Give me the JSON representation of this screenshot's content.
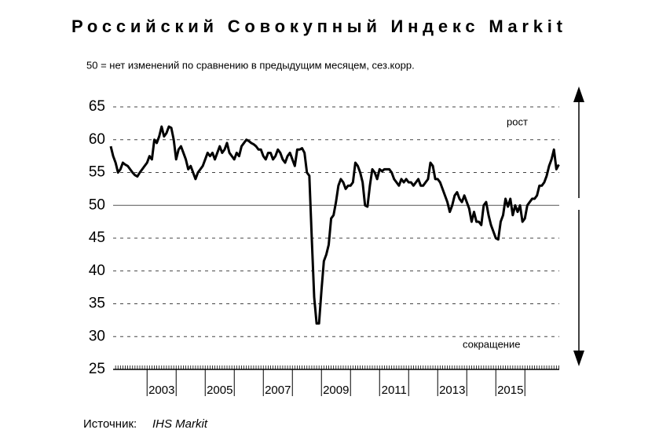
{
  "chart_data": {
    "type": "line",
    "title": "Российский Совокупный Индекс Markit",
    "subtitle": "50 = нет изменений по сравнению в предыдущим месяцем, сез.корр.",
    "annotations": {
      "up": "рост",
      "down": "сокращение"
    },
    "source_label": "Источник:",
    "source": "IHS Markit",
    "color": "#000000",
    "title_color": "#1ea43a",
    "grid": true,
    "baseline": 50,
    "ylim": [
      25,
      65
    ],
    "yticks": [
      25,
      30,
      35,
      40,
      45,
      50,
      55,
      60,
      65
    ],
    "categories": [
      null,
      null,
      null,
      null,
      null,
      null,
      null,
      null,
      null,
      null,
      null,
      null,
      null,
      null,
      null,
      null,
      null,
      null,
      null,
      null,
      null,
      "2003",
      null,
      null,
      null,
      null,
      null,
      null,
      null,
      null,
      null,
      null,
      null,
      null,
      null,
      null,
      null,
      null,
      null,
      null,
      null,
      null,
      null,
      null,
      null,
      "2005",
      null,
      null,
      null,
      null,
      null,
      null,
      null,
      null,
      null,
      null,
      null,
      null,
      null,
      null,
      null,
      null,
      null,
      null,
      null,
      null,
      null,
      null,
      null,
      "2007",
      null,
      null,
      null,
      null,
      null,
      null,
      null,
      null,
      null,
      null,
      null,
      null,
      null,
      null,
      null,
      null,
      null,
      null,
      null,
      null,
      null,
      null,
      null,
      "2009",
      null,
      null,
      null,
      null,
      null,
      null,
      null,
      null,
      null,
      null,
      null,
      null,
      null,
      null,
      null,
      null,
      null,
      null,
      null,
      null,
      null,
      null,
      null,
      "2011",
      null,
      null,
      null,
      null,
      null,
      null,
      null,
      null,
      null,
      null,
      null,
      null,
      null,
      null,
      null,
      null,
      null,
      null,
      null,
      null,
      null,
      null,
      null,
      "2013",
      null,
      null,
      null,
      null,
      null,
      null,
      null,
      null,
      null,
      null,
      null,
      null,
      null,
      null,
      null,
      null,
      null,
      null,
      null,
      null,
      null,
      null,
      null,
      "2015",
      null,
      null,
      null,
      null,
      null,
      null,
      null,
      null,
      null,
      null,
      null,
      null,
      null,
      null,
      null,
      null,
      null,
      null,
      null,
      null
    ],
    "values": [
      59,
      57.5,
      56.5,
      55,
      55.5,
      56.5,
      56.2,
      56,
      55.5,
      55,
      54.6,
      54.4,
      55,
      55.5,
      56,
      56.5,
      57.5,
      57,
      60,
      59.5,
      60.5,
      62,
      60.5,
      61,
      62,
      61.8,
      60,
      57,
      58.5,
      59,
      58,
      57,
      55.5,
      56,
      55,
      54,
      55,
      55.5,
      56,
      57,
      58,
      57.5,
      58,
      57,
      58,
      59,
      58,
      58.5,
      59.5,
      58,
      57.5,
      57,
      58,
      57.5,
      59,
      59.5,
      60,
      59.8,
      59.5,
      59.3,
      59,
      58.5,
      58.5,
      57.5,
      57,
      58,
      58,
      57,
      57.5,
      58.5,
      58,
      57,
      56.5,
      57.5,
      58,
      57,
      56,
      58.5,
      58.5,
      58.7,
      58,
      55,
      54.5,
      45,
      36,
      32,
      32,
      37,
      41.5,
      42.5,
      44,
      48,
      48.5,
      50.5,
      53,
      54,
      53.5,
      52.5,
      53,
      53,
      53.5,
      56.5,
      56,
      55,
      53.5,
      50,
      49.8,
      53,
      55.5,
      55,
      54,
      55.5,
      55.2,
      55.5,
      55.5,
      55.5,
      55,
      54,
      53.5,
      53,
      54,
      53.5,
      54,
      53.5,
      53.5,
      53,
      53.5,
      54,
      53,
      53,
      53.5,
      54,
      56.5,
      56,
      54,
      54,
      53.5,
      52.5,
      51.5,
      50.5,
      49,
      50,
      51.5,
      52,
      51,
      50.5,
      51.5,
      50.5,
      49.5,
      47.5,
      49,
      47.5,
      47.5,
      47,
      50,
      50.5,
      48.5,
      47,
      46,
      45,
      44.8,
      47.5,
      48.5,
      51,
      49.8,
      51,
      48.5,
      50,
      49,
      50,
      47.5,
      48,
      50,
      50.5,
      51,
      51,
      51.5,
      53,
      53,
      53.5,
      54.5,
      56,
      57,
      58.5,
      55.5,
      56.2
    ]
  }
}
